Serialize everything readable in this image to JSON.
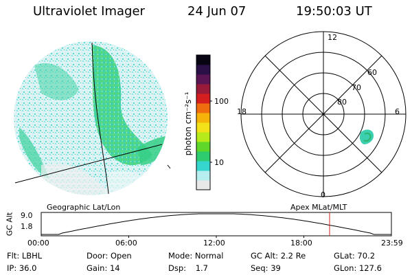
{
  "header": {
    "instrument": "Ultraviolet Imager",
    "date": "24 Jun 07",
    "time": "19:50:03 UT"
  },
  "colorbar": {
    "unit_label": "photon cm⁻²s⁻¹",
    "ticks": [
      {
        "label": "100",
        "value": 100
      },
      {
        "label": "10",
        "value": 10
      }
    ],
    "colors": [
      "#e8e8e8",
      "#b7eef0",
      "#36d6cf",
      "#2fcc6f",
      "#5fd62a",
      "#b6ea1b",
      "#f3e21a",
      "#f6b40b",
      "#ef6d0f",
      "#d51f1f",
      "#9a1a39",
      "#5a1554",
      "#2a1047",
      "#080414"
    ]
  },
  "polar_plot": {
    "mlt_labels": {
      "top": "12",
      "left": "18",
      "right": "6",
      "bottom": "0"
    },
    "lat_labels": [
      "60",
      "70",
      "80"
    ]
  },
  "timeline": {
    "axis_title": "GC Alt",
    "y_ticks": [
      "9.0",
      "1.8"
    ],
    "left_caption": "Geographic Lat/Lon",
    "right_caption": "Apex MLat/MLT",
    "x_ticks": [
      "00:00",
      "06:00",
      "12:00",
      "18:00",
      "23:59"
    ],
    "current_marker_color": "#d02020"
  },
  "footer": {
    "row1": [
      {
        "label": "Flt:",
        "value": "LBHL"
      },
      {
        "label": "Door:",
        "value": "Open"
      },
      {
        "label": "Mode:",
        "value": "Normal"
      },
      {
        "label": "GC Alt:",
        "value": "2.2 Re"
      },
      {
        "label": "GLat:",
        "value": "70.2"
      }
    ],
    "row2": [
      {
        "label": "IP:",
        "value": "36.0"
      },
      {
        "label": "Gain:",
        "value": "14"
      },
      {
        "label": "Dsp:",
        "value": "1.7"
      },
      {
        "label": "Seq:",
        "value": "39"
      },
      {
        "label": "GLon:",
        "value": "127.6"
      }
    ]
  }
}
